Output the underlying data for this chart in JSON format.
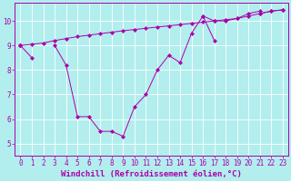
{
  "background_color": "#b2eeee",
  "line_color": "#aa00aa",
  "grid_color": "#ffffff",
  "xlim": [
    -0.5,
    23.5
  ],
  "ylim": [
    4.5,
    10.75
  ],
  "xticks": [
    0,
    1,
    2,
    3,
    4,
    5,
    6,
    7,
    8,
    9,
    10,
    11,
    12,
    13,
    14,
    15,
    16,
    17,
    18,
    19,
    20,
    21,
    22,
    23
  ],
  "yticks": [
    5,
    6,
    7,
    8,
    9,
    10
  ],
  "xlabel": "Windchill (Refroidissement éolien,°C)",
  "figsize": [
    3.2,
    2.0
  ],
  "dpi": 100,
  "tick_fontsize": 5.5,
  "label_fontsize": 6.5,
  "series1": [
    9.0,
    8.5,
    null,
    9.0,
    8.2,
    6.1,
    6.1,
    5.5,
    5.5,
    5.3,
    6.5,
    7.0,
    8.0,
    8.6,
    8.3,
    9.5,
    10.2,
    9.2,
    null,
    null,
    null,
    null,
    null,
    null
  ],
  "series2": [
    9.0,
    null,
    null,
    null,
    null,
    null,
    null,
    null,
    null,
    null,
    null,
    null,
    null,
    null,
    null,
    null,
    null,
    null,
    null,
    null,
    null,
    10.3,
    10.4,
    10.45
  ],
  "series3": [
    9.0,
    null,
    null,
    null,
    null,
    null,
    null,
    null,
    null,
    null,
    null,
    null,
    null,
    null,
    null,
    null,
    10.2,
    10.0,
    10.0,
    10.1,
    10.3,
    10.4,
    null,
    null
  ],
  "series4": [
    9.0,
    9.05,
    9.1,
    9.2,
    9.28,
    9.36,
    9.42,
    9.48,
    9.54,
    9.6,
    9.65,
    9.7,
    9.75,
    9.8,
    9.85,
    9.9,
    9.95,
    10.0,
    10.05,
    10.1,
    10.2,
    10.3,
    10.4,
    10.45
  ]
}
